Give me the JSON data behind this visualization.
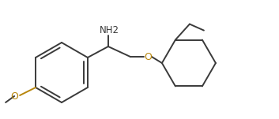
{
  "background_color": "#ffffff",
  "line_color": "#3a3a3a",
  "o_color": "#b8860b",
  "figsize": [
    3.53,
    1.51
  ],
  "dpi": 100,
  "nh2_text": "NH2",
  "o_text": "O"
}
